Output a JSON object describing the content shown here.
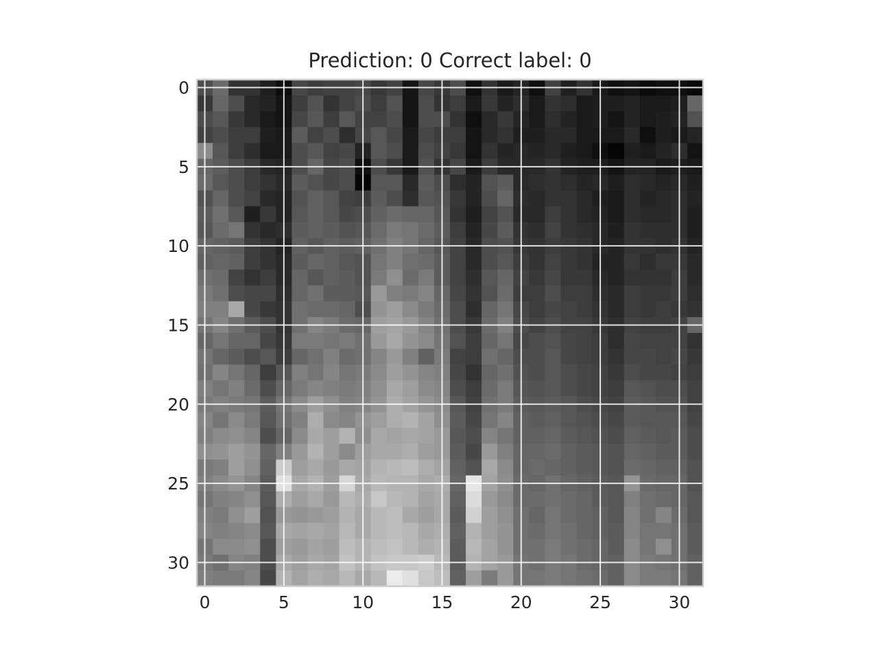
{
  "chart_data": {
    "type": "heatmap",
    "title": "Prediction: 0 Correct label: 0",
    "colormap": "grayscale",
    "grid": true,
    "xlim": [
      -0.5,
      31.5
    ],
    "ylim": [
      31.5,
      -0.5
    ],
    "x_ticks": [
      0,
      5,
      10,
      15,
      20,
      25,
      30
    ],
    "y_ticks": [
      0,
      5,
      10,
      15,
      20,
      25,
      30
    ],
    "x_tick_labels": [
      "0",
      "5",
      "10",
      "15",
      "20",
      "25",
      "30"
    ],
    "y_tick_labels": [
      "0",
      "5",
      "10",
      "15",
      "20",
      "25",
      "30"
    ],
    "rows": 32,
    "cols": 32,
    "values": [
      [
        0.3,
        0.42,
        0.2,
        0.2,
        0.12,
        0.05,
        0.28,
        0.24,
        0.26,
        0.26,
        0.28,
        0.22,
        0.26,
        0.08,
        0.28,
        0.22,
        0.3,
        0.06,
        0.2,
        0.1,
        0.14,
        0.06,
        0.26,
        0.12,
        0.2,
        0.1,
        0.06,
        0.08,
        0.04,
        0.06,
        0.06,
        0.03
      ],
      [
        0.22,
        0.4,
        0.3,
        0.16,
        0.14,
        0.08,
        0.24,
        0.32,
        0.2,
        0.26,
        0.3,
        0.24,
        0.32,
        0.08,
        0.3,
        0.2,
        0.24,
        0.1,
        0.22,
        0.14,
        0.18,
        0.1,
        0.2,
        0.18,
        0.1,
        0.12,
        0.12,
        0.14,
        0.1,
        0.1,
        0.12,
        0.4
      ],
      [
        0.3,
        0.34,
        0.22,
        0.16,
        0.1,
        0.08,
        0.28,
        0.34,
        0.24,
        0.34,
        0.26,
        0.26,
        0.3,
        0.08,
        0.3,
        0.3,
        0.2,
        0.06,
        0.16,
        0.22,
        0.14,
        0.1,
        0.18,
        0.14,
        0.1,
        0.12,
        0.08,
        0.14,
        0.1,
        0.12,
        0.14,
        0.32
      ],
      [
        0.26,
        0.3,
        0.24,
        0.24,
        0.12,
        0.1,
        0.36,
        0.26,
        0.3,
        0.18,
        0.28,
        0.34,
        0.28,
        0.1,
        0.28,
        0.24,
        0.24,
        0.08,
        0.16,
        0.2,
        0.12,
        0.12,
        0.16,
        0.16,
        0.1,
        0.1,
        0.1,
        0.16,
        0.06,
        0.12,
        0.1,
        0.14
      ],
      [
        0.55,
        0.34,
        0.24,
        0.18,
        0.1,
        0.1,
        0.3,
        0.34,
        0.26,
        0.28,
        0.14,
        0.34,
        0.3,
        0.1,
        0.3,
        0.26,
        0.22,
        0.08,
        0.2,
        0.14,
        0.16,
        0.14,
        0.16,
        0.12,
        0.1,
        0.06,
        0.02,
        0.12,
        0.1,
        0.14,
        0.18,
        0.08
      ],
      [
        0.4,
        0.36,
        0.3,
        0.24,
        0.16,
        0.14,
        0.3,
        0.4,
        0.28,
        0.3,
        0.06,
        0.3,
        0.22,
        0.1,
        0.32,
        0.2,
        0.28,
        0.1,
        0.24,
        0.16,
        0.16,
        0.16,
        0.2,
        0.14,
        0.12,
        0.12,
        0.08,
        0.14,
        0.14,
        0.1,
        0.12,
        0.1
      ],
      [
        0.42,
        0.34,
        0.3,
        0.24,
        0.2,
        0.16,
        0.36,
        0.32,
        0.28,
        0.3,
        0.02,
        0.34,
        0.34,
        0.16,
        0.36,
        0.3,
        0.18,
        0.14,
        0.32,
        0.36,
        0.16,
        0.18,
        0.2,
        0.18,
        0.14,
        0.16,
        0.12,
        0.18,
        0.16,
        0.14,
        0.16,
        0.12
      ],
      [
        0.32,
        0.4,
        0.3,
        0.26,
        0.16,
        0.14,
        0.32,
        0.38,
        0.34,
        0.26,
        0.24,
        0.36,
        0.3,
        0.18,
        0.34,
        0.32,
        0.22,
        0.14,
        0.3,
        0.4,
        0.18,
        0.16,
        0.2,
        0.2,
        0.16,
        0.12,
        0.1,
        0.18,
        0.14,
        0.16,
        0.18,
        0.14
      ],
      [
        0.36,
        0.44,
        0.34,
        0.12,
        0.22,
        0.14,
        0.34,
        0.38,
        0.34,
        0.28,
        0.3,
        0.38,
        0.42,
        0.4,
        0.4,
        0.34,
        0.2,
        0.12,
        0.26,
        0.32,
        0.16,
        0.16,
        0.24,
        0.2,
        0.16,
        0.14,
        0.1,
        0.18,
        0.16,
        0.16,
        0.18,
        0.12
      ],
      [
        0.34,
        0.42,
        0.46,
        0.2,
        0.16,
        0.18,
        0.36,
        0.38,
        0.36,
        0.32,
        0.34,
        0.42,
        0.48,
        0.46,
        0.42,
        0.36,
        0.24,
        0.14,
        0.28,
        0.36,
        0.2,
        0.18,
        0.26,
        0.2,
        0.18,
        0.16,
        0.12,
        0.2,
        0.18,
        0.18,
        0.18,
        0.12
      ],
      [
        0.4,
        0.38,
        0.36,
        0.24,
        0.2,
        0.14,
        0.38,
        0.34,
        0.38,
        0.36,
        0.38,
        0.44,
        0.5,
        0.46,
        0.4,
        0.34,
        0.26,
        0.16,
        0.3,
        0.32,
        0.22,
        0.2,
        0.24,
        0.22,
        0.2,
        0.16,
        0.14,
        0.2,
        0.2,
        0.18,
        0.2,
        0.14
      ],
      [
        0.38,
        0.4,
        0.38,
        0.24,
        0.2,
        0.16,
        0.36,
        0.4,
        0.38,
        0.34,
        0.32,
        0.46,
        0.5,
        0.44,
        0.42,
        0.36,
        0.26,
        0.16,
        0.3,
        0.34,
        0.24,
        0.2,
        0.26,
        0.22,
        0.2,
        0.14,
        0.14,
        0.22,
        0.18,
        0.22,
        0.22,
        0.16
      ],
      [
        0.44,
        0.42,
        0.26,
        0.2,
        0.24,
        0.16,
        0.4,
        0.34,
        0.38,
        0.36,
        0.32,
        0.48,
        0.56,
        0.42,
        0.48,
        0.36,
        0.26,
        0.18,
        0.34,
        0.4,
        0.26,
        0.22,
        0.28,
        0.22,
        0.22,
        0.16,
        0.14,
        0.2,
        0.2,
        0.2,
        0.24,
        0.16
      ],
      [
        0.48,
        0.44,
        0.3,
        0.28,
        0.28,
        0.18,
        0.4,
        0.44,
        0.36,
        0.36,
        0.34,
        0.6,
        0.5,
        0.48,
        0.52,
        0.4,
        0.28,
        0.2,
        0.32,
        0.42,
        0.24,
        0.24,
        0.3,
        0.24,
        0.24,
        0.18,
        0.16,
        0.24,
        0.22,
        0.22,
        0.24,
        0.18
      ],
      [
        0.5,
        0.5,
        0.66,
        0.28,
        0.22,
        0.2,
        0.44,
        0.42,
        0.42,
        0.4,
        0.3,
        0.58,
        0.62,
        0.54,
        0.48,
        0.42,
        0.3,
        0.18,
        0.4,
        0.46,
        0.28,
        0.24,
        0.28,
        0.26,
        0.24,
        0.2,
        0.16,
        0.24,
        0.22,
        0.24,
        0.22,
        0.2
      ],
      [
        0.46,
        0.52,
        0.44,
        0.36,
        0.3,
        0.2,
        0.44,
        0.52,
        0.48,
        0.42,
        0.4,
        0.62,
        0.64,
        0.6,
        0.52,
        0.44,
        0.3,
        0.22,
        0.42,
        0.5,
        0.3,
        0.26,
        0.3,
        0.26,
        0.26,
        0.22,
        0.18,
        0.26,
        0.24,
        0.24,
        0.26,
        0.4
      ],
      [
        0.4,
        0.46,
        0.4,
        0.4,
        0.28,
        0.22,
        0.48,
        0.48,
        0.46,
        0.48,
        0.44,
        0.6,
        0.66,
        0.58,
        0.54,
        0.46,
        0.32,
        0.24,
        0.4,
        0.46,
        0.28,
        0.3,
        0.32,
        0.28,
        0.26,
        0.24,
        0.18,
        0.28,
        0.26,
        0.26,
        0.26,
        0.2
      ],
      [
        0.46,
        0.4,
        0.36,
        0.3,
        0.34,
        0.24,
        0.4,
        0.44,
        0.5,
        0.42,
        0.44,
        0.52,
        0.6,
        0.5,
        0.38,
        0.48,
        0.26,
        0.24,
        0.44,
        0.4,
        0.3,
        0.3,
        0.34,
        0.28,
        0.26,
        0.24,
        0.2,
        0.28,
        0.28,
        0.26,
        0.28,
        0.22
      ],
      [
        0.44,
        0.52,
        0.46,
        0.4,
        0.24,
        0.34,
        0.5,
        0.46,
        0.52,
        0.46,
        0.48,
        0.54,
        0.62,
        0.58,
        0.52,
        0.5,
        0.28,
        0.2,
        0.4,
        0.44,
        0.32,
        0.3,
        0.34,
        0.3,
        0.28,
        0.26,
        0.22,
        0.3,
        0.28,
        0.28,
        0.26,
        0.24
      ],
      [
        0.5,
        0.46,
        0.5,
        0.42,
        0.3,
        0.4,
        0.48,
        0.52,
        0.5,
        0.48,
        0.5,
        0.56,
        0.66,
        0.62,
        0.54,
        0.52,
        0.3,
        0.24,
        0.42,
        0.48,
        0.34,
        0.32,
        0.34,
        0.3,
        0.28,
        0.26,
        0.24,
        0.34,
        0.32,
        0.3,
        0.3,
        0.26
      ],
      [
        0.48,
        0.5,
        0.48,
        0.46,
        0.36,
        0.46,
        0.54,
        0.62,
        0.56,
        0.5,
        0.52,
        0.58,
        0.68,
        0.64,
        0.58,
        0.54,
        0.34,
        0.26,
        0.44,
        0.48,
        0.36,
        0.34,
        0.36,
        0.34,
        0.3,
        0.28,
        0.26,
        0.36,
        0.34,
        0.32,
        0.32,
        0.26
      ],
      [
        0.52,
        0.46,
        0.54,
        0.48,
        0.34,
        0.44,
        0.5,
        0.68,
        0.54,
        0.52,
        0.58,
        0.62,
        0.68,
        0.7,
        0.64,
        0.56,
        0.36,
        0.28,
        0.46,
        0.52,
        0.38,
        0.36,
        0.38,
        0.34,
        0.32,
        0.3,
        0.28,
        0.36,
        0.34,
        0.34,
        0.34,
        0.28
      ],
      [
        0.5,
        0.54,
        0.56,
        0.52,
        0.3,
        0.4,
        0.54,
        0.66,
        0.62,
        0.7,
        0.56,
        0.66,
        0.64,
        0.66,
        0.64,
        0.6,
        0.34,
        0.3,
        0.52,
        0.46,
        0.38,
        0.38,
        0.4,
        0.36,
        0.34,
        0.32,
        0.3,
        0.38,
        0.36,
        0.34,
        0.36,
        0.3
      ],
      [
        0.56,
        0.58,
        0.62,
        0.58,
        0.4,
        0.5,
        0.6,
        0.7,
        0.62,
        0.54,
        0.62,
        0.66,
        0.66,
        0.68,
        0.62,
        0.6,
        0.36,
        0.28,
        0.6,
        0.5,
        0.4,
        0.4,
        0.42,
        0.38,
        0.36,
        0.34,
        0.32,
        0.4,
        0.38,
        0.36,
        0.36,
        0.3
      ],
      [
        0.48,
        0.5,
        0.62,
        0.56,
        0.38,
        0.8,
        0.62,
        0.66,
        0.6,
        0.66,
        0.64,
        0.7,
        0.72,
        0.74,
        0.68,
        0.64,
        0.38,
        0.32,
        0.66,
        0.54,
        0.4,
        0.42,
        0.4,
        0.38,
        0.36,
        0.34,
        0.32,
        0.42,
        0.4,
        0.38,
        0.38,
        0.32
      ],
      [
        0.5,
        0.54,
        0.58,
        0.52,
        0.36,
        0.88,
        0.66,
        0.7,
        0.62,
        0.84,
        0.66,
        0.72,
        0.7,
        0.7,
        0.66,
        0.68,
        0.4,
        0.9,
        0.64,
        0.56,
        0.42,
        0.4,
        0.44,
        0.4,
        0.38,
        0.36,
        0.34,
        0.58,
        0.42,
        0.4,
        0.4,
        0.32
      ],
      [
        0.46,
        0.5,
        0.52,
        0.56,
        0.34,
        0.68,
        0.62,
        0.66,
        0.6,
        0.72,
        0.68,
        0.78,
        0.72,
        0.7,
        0.64,
        0.66,
        0.38,
        0.86,
        0.6,
        0.54,
        0.42,
        0.42,
        0.44,
        0.42,
        0.4,
        0.36,
        0.34,
        0.5,
        0.44,
        0.42,
        0.4,
        0.34
      ],
      [
        0.5,
        0.48,
        0.56,
        0.62,
        0.32,
        0.6,
        0.58,
        0.6,
        0.62,
        0.7,
        0.66,
        0.72,
        0.74,
        0.66,
        0.62,
        0.66,
        0.36,
        0.82,
        0.62,
        0.56,
        0.44,
        0.4,
        0.46,
        0.42,
        0.4,
        0.38,
        0.34,
        0.52,
        0.44,
        0.52,
        0.42,
        0.34
      ],
      [
        0.52,
        0.5,
        0.52,
        0.54,
        0.34,
        0.66,
        0.64,
        0.66,
        0.64,
        0.72,
        0.66,
        0.72,
        0.74,
        0.72,
        0.66,
        0.68,
        0.38,
        0.7,
        0.62,
        0.58,
        0.44,
        0.42,
        0.46,
        0.44,
        0.4,
        0.38,
        0.36,
        0.52,
        0.46,
        0.46,
        0.44,
        0.36
      ],
      [
        0.46,
        0.54,
        0.54,
        0.56,
        0.3,
        0.62,
        0.6,
        0.64,
        0.62,
        0.74,
        0.7,
        0.74,
        0.76,
        0.72,
        0.68,
        0.7,
        0.36,
        0.72,
        0.64,
        0.58,
        0.44,
        0.44,
        0.48,
        0.44,
        0.42,
        0.4,
        0.36,
        0.54,
        0.46,
        0.56,
        0.44,
        0.36
      ],
      [
        0.48,
        0.44,
        0.52,
        0.5,
        0.3,
        0.66,
        0.62,
        0.66,
        0.64,
        0.76,
        0.7,
        0.76,
        0.78,
        0.78,
        0.8,
        0.72,
        0.36,
        0.7,
        0.64,
        0.6,
        0.46,
        0.44,
        0.48,
        0.46,
        0.42,
        0.4,
        0.38,
        0.54,
        0.48,
        0.46,
        0.44,
        0.38
      ],
      [
        0.5,
        0.48,
        0.48,
        0.52,
        0.28,
        0.7,
        0.64,
        0.68,
        0.66,
        0.72,
        0.66,
        0.72,
        0.92,
        0.88,
        0.78,
        0.74,
        0.38,
        0.62,
        0.48,
        0.6,
        0.46,
        0.46,
        0.48,
        0.46,
        0.44,
        0.42,
        0.38,
        0.54,
        0.48,
        0.48,
        0.46,
        0.38
      ]
    ]
  }
}
